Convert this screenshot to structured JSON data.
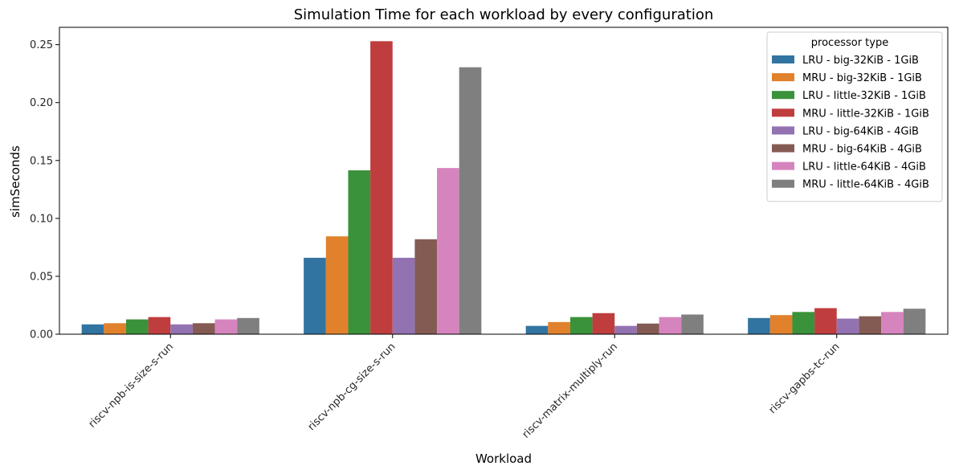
{
  "chart_data": {
    "type": "bar",
    "title": "Simulation Time for each workload by every configuration",
    "xlabel": "Workload",
    "ylabel": "simSeconds",
    "ylim": [
      0,
      0.265
    ],
    "yticks": [
      0.0,
      0.05,
      0.1,
      0.15,
      0.2,
      0.25
    ],
    "ytick_labels": [
      "0.00",
      "0.05",
      "0.10",
      "0.15",
      "0.20",
      "0.25"
    ],
    "grid": false,
    "legend": {
      "title": "processor type",
      "placement": "top-right"
    },
    "categories": [
      "riscv-npb-is-size-s-run",
      "riscv-npb-cg-size-s-run",
      "riscv-matrix-multiply-run",
      "riscv-gapbs-tc-run"
    ],
    "series": [
      {
        "name": "LRU - big-32KiB - 1GiB",
        "color": "#3274a1",
        "values": [
          0.0085,
          0.066,
          0.0072,
          0.014
        ]
      },
      {
        "name": "MRU - big-32KiB - 1GiB",
        "color": "#e1812c",
        "values": [
          0.0095,
          0.0845,
          0.0105,
          0.0165
        ]
      },
      {
        "name": "LRU - little-32KiB - 1GiB",
        "color": "#3a923a",
        "values": [
          0.0128,
          0.1415,
          0.0148,
          0.0192
        ]
      },
      {
        "name": "MRU - little-32KiB - 1GiB",
        "color": "#c03d3e",
        "values": [
          0.0148,
          0.253,
          0.0182,
          0.0225
        ]
      },
      {
        "name": "LRU - big-64KiB - 4GiB",
        "color": "#9372b2",
        "values": [
          0.0085,
          0.066,
          0.0072,
          0.0135
        ]
      },
      {
        "name": "MRU - big-64KiB - 4GiB",
        "color": "#845b53",
        "values": [
          0.0095,
          0.082,
          0.0092,
          0.0155
        ]
      },
      {
        "name": "LRU - little-64KiB - 4GiB",
        "color": "#d684bd",
        "values": [
          0.0128,
          0.1435,
          0.0148,
          0.0192
        ]
      },
      {
        "name": "MRU - little-64KiB - 4GiB",
        "color": "#7f7f7f",
        "values": [
          0.014,
          0.2305,
          0.017,
          0.022
        ]
      }
    ]
  }
}
